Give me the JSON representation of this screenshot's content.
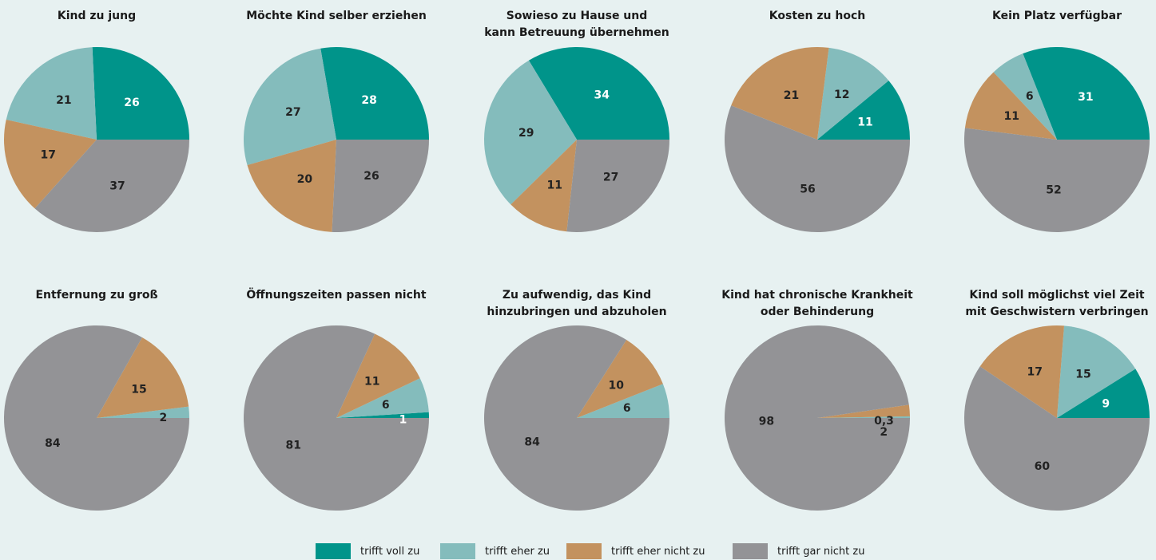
{
  "chart_data": {
    "type": "pie",
    "legend": [
      {
        "label": "trifft voll zu",
        "color": "#00948a"
      },
      {
        "label": "trifft eher zu",
        "color": "#84bcbc"
      },
      {
        "label": "trifft eher nicht zu",
        "color": "#c3925f"
      },
      {
        "label": "trifft gar nicht zu",
        "color": "#939396"
      }
    ],
    "legend_position": "bottom",
    "pies": [
      {
        "title": [
          "Kind zu jung"
        ],
        "values": [
          26,
          21,
          17,
          37
        ],
        "labels": [
          "26",
          "21",
          "17",
          "37"
        ]
      },
      {
        "title": [
          "Möchte Kind selber erziehen"
        ],
        "values": [
          28,
          27,
          20,
          26
        ],
        "labels": [
          "28",
          "27",
          "20",
          "26"
        ]
      },
      {
        "title": [
          "Sowieso zu Hause und",
          "kann Betreuung übernehmen"
        ],
        "values": [
          34,
          29,
          11,
          27
        ],
        "labels": [
          "34",
          "29",
          "11",
          "27"
        ]
      },
      {
        "title": [
          "Kosten zu hoch"
        ],
        "values": [
          11,
          12,
          21,
          56
        ],
        "labels": [
          "11",
          "12",
          "21",
          "56"
        ]
      },
      {
        "title": [
          "Kein Platz verfügbar"
        ],
        "values": [
          31,
          6,
          11,
          52
        ],
        "labels": [
          "31",
          "6",
          "11",
          "52"
        ]
      },
      {
        "title": [
          "Entfernung zu groß"
        ],
        "values": [
          0,
          2,
          15,
          84
        ],
        "labels": [
          "",
          "2",
          "15",
          "84"
        ]
      },
      {
        "title": [
          "Öffnungszeiten passen nicht"
        ],
        "values": [
          1,
          6,
          11,
          81
        ],
        "labels": [
          "1",
          "6",
          "11",
          "81"
        ]
      },
      {
        "title": [
          "Zu aufwendig, das Kind",
          "hinzubringen und abzuholen"
        ],
        "values": [
          0,
          6,
          10,
          84
        ],
        "labels": [
          "",
          "6",
          "10",
          "84"
        ]
      },
      {
        "title": [
          "Kind hat chronische Krankheit",
          "oder Behinderung"
        ],
        "values": [
          0,
          0.3,
          2,
          98
        ],
        "labels": [
          "",
          "0,3",
          "2",
          "98"
        ]
      },
      {
        "title": [
          "Kind soll möglichst viel Zeit",
          "mit Geschwistern verbringen"
        ],
        "values": [
          9,
          15,
          17,
          60
        ],
        "labels": [
          "9",
          "15",
          "17",
          "60"
        ]
      }
    ]
  }
}
